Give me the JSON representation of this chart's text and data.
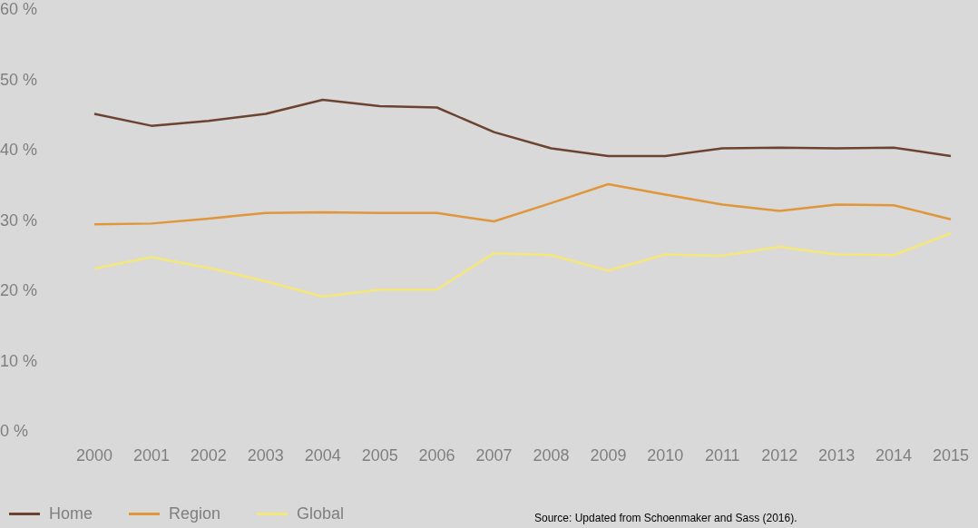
{
  "chart_data": {
    "type": "line",
    "categories": [
      "2000",
      "2001",
      "2002",
      "2003",
      "2004",
      "2005",
      "2006",
      "2007",
      "2008",
      "2009",
      "2010",
      "2011",
      "2012",
      "2013",
      "2014",
      "2015"
    ],
    "series": [
      {
        "name": "Home",
        "color": "#6b4330",
        "values": [
          45.1,
          43.4,
          44.1,
          45.1,
          47.1,
          46.2,
          46.0,
          42.5,
          40.2,
          39.1,
          39.1,
          40.2,
          40.3,
          40.2,
          40.3,
          39.1
        ]
      },
      {
        "name": "Region",
        "color": "#e0963a",
        "values": [
          29.4,
          29.5,
          30.2,
          31.0,
          31.1,
          31.0,
          31.0,
          29.8,
          32.4,
          35.1,
          33.6,
          32.2,
          31.3,
          32.2,
          32.1,
          30.1
        ]
      },
      {
        "name": "Global",
        "color": "#f5e67a",
        "values": [
          23.1,
          24.7,
          23.2,
          21.3,
          19.1,
          20.1,
          20.1,
          25.3,
          25.0,
          22.8,
          25.1,
          24.9,
          26.2,
          25.1,
          25.0,
          28.1
        ]
      }
    ],
    "ylim": [
      0,
      60
    ],
    "yticks": [
      {
        "value": 0,
        "label": "0 %"
      },
      {
        "value": 10,
        "label": "10 %"
      },
      {
        "value": 20,
        "label": "20 %"
      },
      {
        "value": 30,
        "label": "30 %"
      },
      {
        "value": 40,
        "label": "40 %"
      },
      {
        "value": 50,
        "label": "50 %"
      },
      {
        "value": 60,
        "label": "60 %"
      }
    ],
    "grid": false,
    "legend": "bottom left",
    "marker": "none",
    "line_style": "solid",
    "annotations": [
      "Source: Updated from Schoenmaker and Sass (2016)."
    ]
  }
}
